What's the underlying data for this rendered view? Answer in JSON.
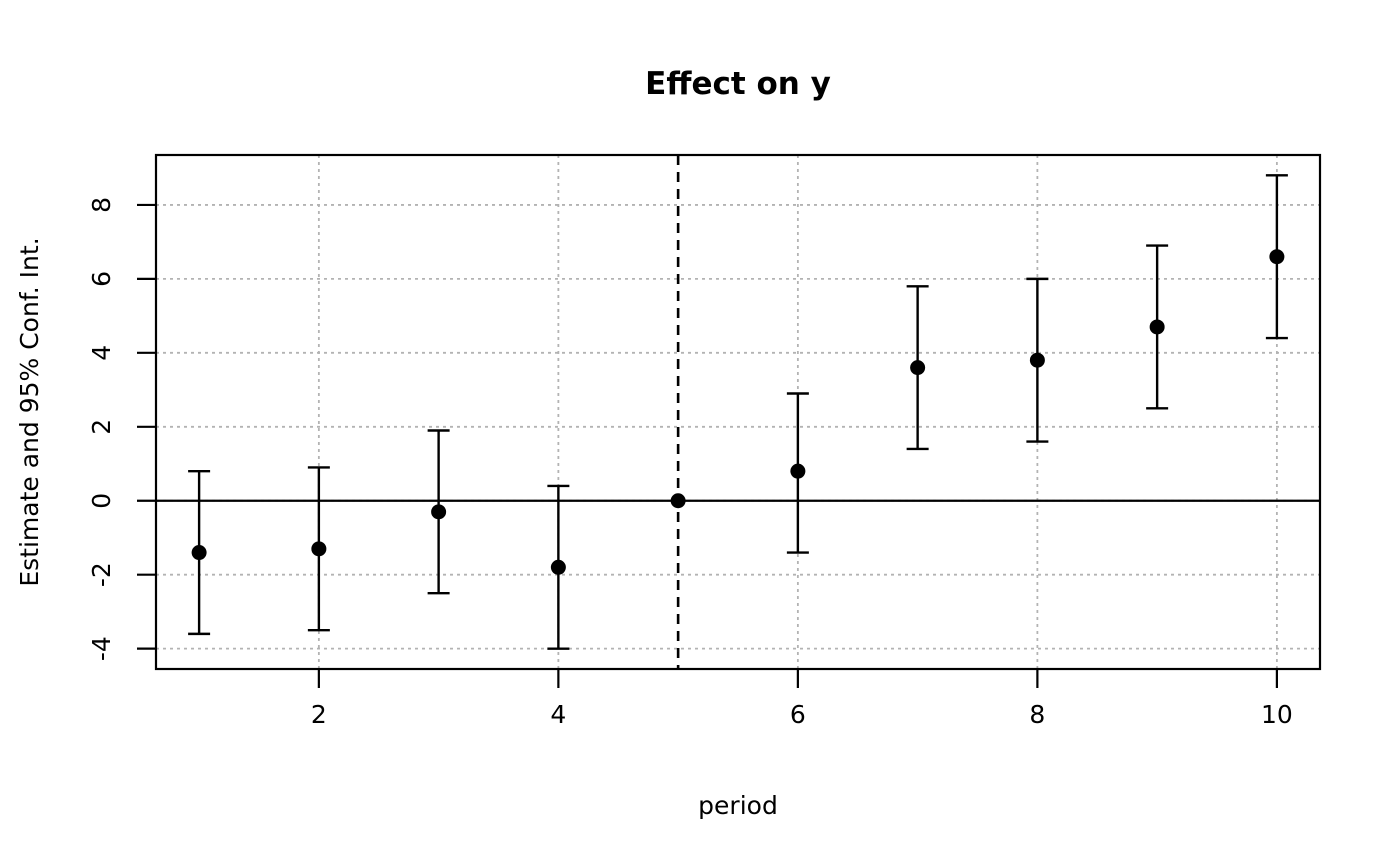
{
  "chart_data": {
    "type": "scatter",
    "title": "Effect on y",
    "xlabel": "period",
    "ylabel": "Estimate and 95% Conf. Int.",
    "points": [
      {
        "period": 1,
        "estimate": -1.4,
        "ci_low": -3.6,
        "ci_high": 0.8
      },
      {
        "period": 2,
        "estimate": -1.3,
        "ci_low": -3.5,
        "ci_high": 0.9
      },
      {
        "period": 3,
        "estimate": -0.3,
        "ci_low": -2.5,
        "ci_high": 1.9
      },
      {
        "period": 4,
        "estimate": -1.8,
        "ci_low": -4.0,
        "ci_high": 0.4
      },
      {
        "period": 5,
        "estimate": 0.0,
        "ci_low": null,
        "ci_high": null
      },
      {
        "period": 6,
        "estimate": 0.8,
        "ci_low": -1.4,
        "ci_high": 2.9
      },
      {
        "period": 7,
        "estimate": 3.6,
        "ci_low": 1.4,
        "ci_high": 5.8
      },
      {
        "period": 8,
        "estimate": 3.8,
        "ci_low": 1.6,
        "ci_high": 6.0
      },
      {
        "period": 9,
        "estimate": 4.7,
        "ci_low": 2.5,
        "ci_high": 6.9
      },
      {
        "period": 10,
        "estimate": 6.6,
        "ci_low": 4.4,
        "ci_high": 8.8
      }
    ],
    "x_ticks": [
      2,
      4,
      6,
      8,
      10
    ],
    "y_ticks": [
      -4,
      -2,
      0,
      2,
      4,
      6,
      8
    ],
    "xlim": [
      0.64,
      10.36
    ],
    "ylim": [
      -4.55,
      9.35
    ],
    "hline_y": 0,
    "vline_x": 5,
    "grid": true,
    "legend": "none",
    "styles": {
      "point_color": "#000000",
      "line_color": "#000000",
      "grid_color": "#b3b3b3",
      "background": "#ffffff"
    }
  }
}
